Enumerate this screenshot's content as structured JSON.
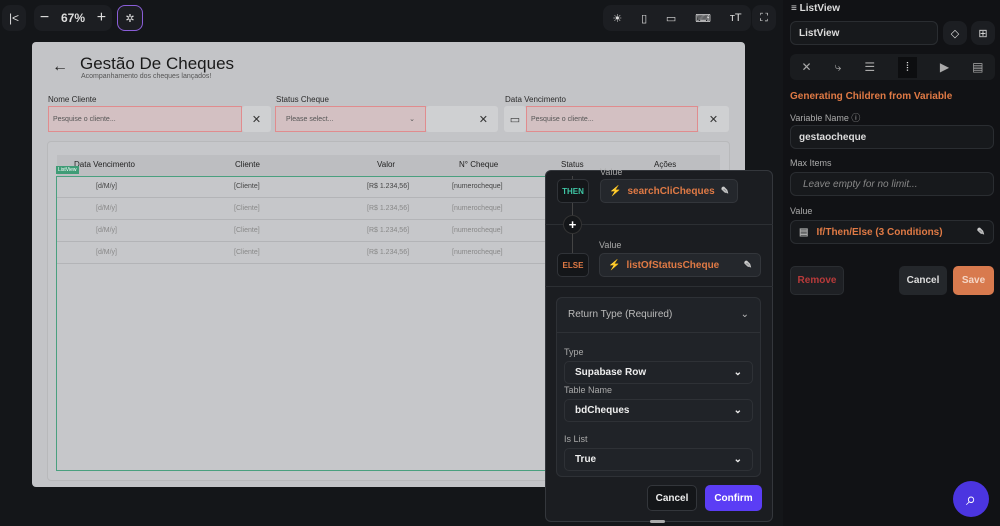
{
  "toolbar": {
    "zoom": "67%"
  },
  "page": {
    "title": "Gestão De Cheques",
    "subtitle": "Acompanhamento dos cheques lançados!",
    "filters": [
      {
        "label": "Nome Cliente",
        "placeholder": "Pesquise o cliente..."
      },
      {
        "label": "Status Cheque",
        "placeholder": "Please select..."
      },
      {
        "label": "Data Vencimento",
        "placeholder": "Pesquise o cliente..."
      }
    ],
    "columns": [
      "Data Vencimento",
      "Cliente",
      "Valor",
      "N° Cheque",
      "Status",
      "Ações"
    ],
    "listview_tag": "ListView",
    "rows": [
      [
        "[d/M/y]",
        "[Cliente]",
        "[R$ 1.234,56]",
        "[numerocheque]"
      ],
      [
        "[d/M/y]",
        "[Cliente]",
        "[R$ 1.234,56]",
        "[numerocheque]"
      ],
      [
        "[d/M/y]",
        "[Cliente]",
        "[R$ 1.234,56]",
        "[numerocheque]"
      ],
      [
        "[d/M/y]",
        "[Cliente]",
        "[R$ 1.234,56]",
        "[numerocheque]"
      ]
    ]
  },
  "popup": {
    "value_label": "Value",
    "then": "THEN",
    "then_value": "searchCliCheques",
    "else": "ELSE",
    "else_value": "listOfStatusCheque",
    "return_type": "Return Type (Required)",
    "type_label": "Type",
    "type_value": "Supabase Row",
    "table_label": "Table Name",
    "table_value": "bdCheques",
    "islist_label": "Is List",
    "islist_value": "True",
    "cancel": "Cancel",
    "confirm": "Confirm"
  },
  "panel": {
    "header": "ListView",
    "name_value": "ListView",
    "section": "Generating Children from Variable",
    "var_label": "Variable Name",
    "var_value": "gestaocheque",
    "max_label": "Max Items",
    "max_placeholder": "Leave empty for no limit...",
    "value_label": "Value",
    "value_value": "If/Then/Else (3 Conditions)",
    "remove": "Remove",
    "cancel": "Cancel",
    "save": "Save"
  },
  "colors": {
    "accent_orange": "#e07a45",
    "confirm": "#5b3df5",
    "then": "#3fc6a5",
    "listview": "#3f9c76"
  }
}
